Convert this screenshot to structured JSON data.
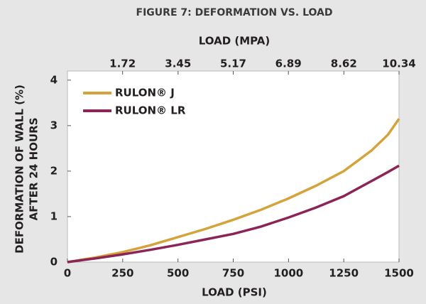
{
  "chart_data": {
    "type": "line",
    "title": "FIGURE 7: DEFORMATION VS. LOAD",
    "x_label": "LOAD (PSI)",
    "x2_label": "LOAD (MPA)",
    "y_label": [
      "DEFORMATION OF WALL (%)",
      "AFTER 24 HOURS"
    ],
    "x": [
      0,
      125,
      250,
      375,
      500,
      625,
      750,
      875,
      1000,
      1125,
      1250,
      1375,
      1450,
      1500
    ],
    "series": [
      {
        "name": "RULON® J",
        "color": "#d4a33c",
        "values": [
          0,
          0.1,
          0.22,
          0.37,
          0.55,
          0.73,
          0.93,
          1.15,
          1.4,
          1.68,
          2.0,
          2.45,
          2.8,
          3.15
        ]
      },
      {
        "name": "RULON® LR",
        "color": "#8b2557",
        "values": [
          0,
          0.08,
          0.17,
          0.27,
          0.38,
          0.5,
          0.62,
          0.78,
          0.98,
          1.2,
          1.45,
          1.78,
          1.98,
          2.12
        ]
      }
    ],
    "xlim": [
      0,
      1500
    ],
    "xticks": [
      0,
      250,
      500,
      750,
      1000,
      1250,
      1500
    ],
    "x2lim": [
      0,
      10.34
    ],
    "x2ticks": [
      1.72,
      3.45,
      5.17,
      6.89,
      8.62,
      10.34
    ],
    "ylim": [
      0,
      4.2
    ],
    "yticks": [
      0,
      1,
      2,
      3,
      4
    ],
    "legend": "upper-left"
  }
}
